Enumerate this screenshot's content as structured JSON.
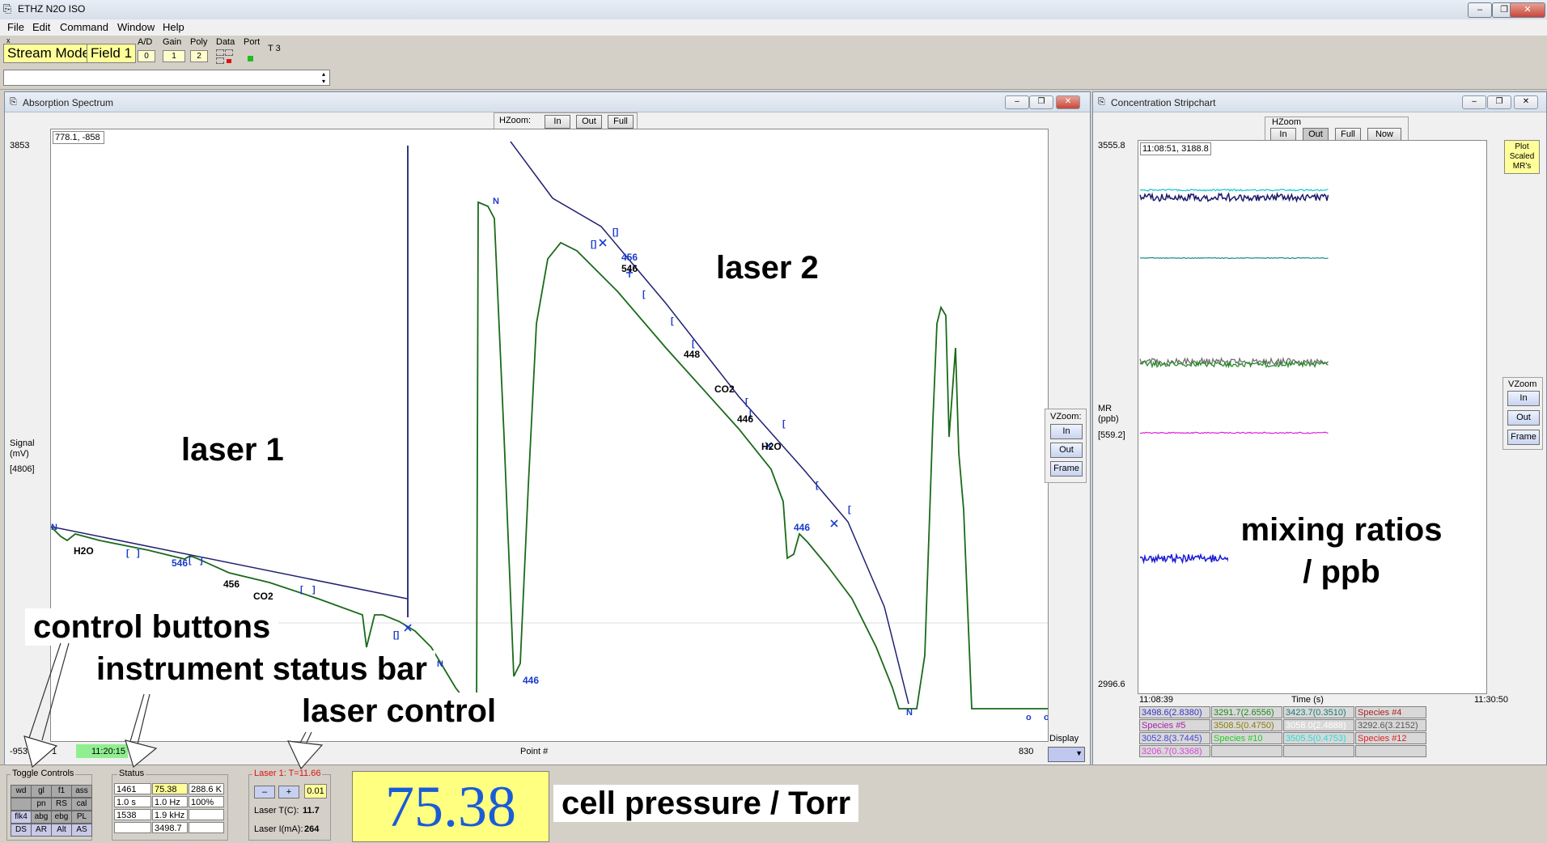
{
  "app": {
    "title": "ETHZ N2O ISO"
  },
  "menu": [
    "File",
    "Edit",
    "Command",
    "Window",
    "Help"
  ],
  "toolbar": {
    "stream_mode": "Stream Mode",
    "field": "Field 1",
    "ad_label": "A/D",
    "ad_value": "0",
    "gain_label": "Gain",
    "gain_value": "1",
    "poly_label": "Poly",
    "poly_value": "2",
    "data_label": "Data",
    "port_label": "Port",
    "t_label": "T 3",
    "x_label": "x"
  },
  "spectrum": {
    "title": "Absorption Spectrum",
    "hzoom_label": "HZoom:",
    "hzoom_buttons": [
      "In",
      "Out",
      "Full"
    ],
    "cursor_readout": "778.1, -858",
    "y_top": "3853",
    "y_bottom": "-953",
    "y_label": "Signal",
    "y_unit": "(mV)",
    "y_mid": "[4806]",
    "x_left": "1",
    "x_time": "11:20:15",
    "x_label": "Point #",
    "x_right": "830",
    "vzoom_label": "VZoom:",
    "vzoom_buttons": [
      "In",
      "Out",
      "Frame"
    ],
    "display_label": "Display",
    "peak_labels": {
      "h2o_1": "H2O",
      "p546_1": "546",
      "p456_1": "456",
      "co2_1": "CO2",
      "p456_2": "456",
      "p546_2": "546",
      "p448": "448",
      "co2_2": "CO2",
      "p446_1": "446",
      "h2o_2": "H2O",
      "p446_2": "446",
      "p446_3": "446"
    },
    "annotations": {
      "laser1": "laser 1",
      "laser2": "laser 2"
    }
  },
  "stripchart": {
    "title": "Concentration Stripchart",
    "hzoom_label": "HZoom",
    "hzoom_buttons": [
      "In",
      "Out",
      "Full",
      "Now"
    ],
    "cursor_readout": "11:08:51, 3188.8",
    "y_top": "3555.8",
    "y_bottom": "2996.6",
    "y_label": "MR",
    "y_unit": "(ppb)",
    "y_mid": "[559.2]",
    "x_left": "11:08:39",
    "x_label": "Time (s)",
    "x_right": "11:30:50",
    "plot_scaled": "Plot Scaled MR's",
    "vzoom_label": "VZoom",
    "vzoom_buttons": [
      "In",
      "Out",
      "Frame"
    ],
    "species": [
      [
        "3498.6(2.8380)",
        "3291.7(2.6556)",
        "3423.7(0.3510)",
        "Species #4"
      ],
      [
        "Species #5",
        "3508.5(0.4750)",
        "3058.0(2.4888)",
        "3292.6(3.2152)"
      ],
      [
        "3052.8(3.7445)",
        "Species #10",
        "3505.5(0.4753)",
        "Species #12"
      ],
      [
        "3206.7(0.3368)",
        "",
        "",
        ""
      ]
    ],
    "species_colors": [
      [
        "#3333cc",
        "#1a8a1a",
        "#1a7a7a",
        "#aa2222"
      ],
      [
        "#aa22aa",
        "#8a7a00",
        "#ffffff",
        "#555555"
      ],
      [
        "#4444dd",
        "#22cc22",
        "#22dddd",
        "#dd2222"
      ],
      [
        "#dd44dd",
        "#000000",
        "#000000",
        "#000000"
      ]
    ],
    "annotation": "mixing ratios / ppb"
  },
  "status": {
    "toggle_title": "Toggle Controls",
    "toggles": [
      [
        "wd",
        "gl",
        "f1",
        "ass"
      ],
      [
        "",
        "pn",
        "RS",
        "cal"
      ],
      [
        "flk4",
        "abg",
        "ebg",
        "PL"
      ],
      [
        "DS",
        "AR",
        "Alt",
        "AS"
      ]
    ],
    "status_title": "Status",
    "status_cells": [
      [
        "1461",
        "75.38",
        "288.6 K"
      ],
      [
        "1.0 s",
        "1.0 Hz",
        "100%"
      ],
      [
        "1538",
        "1.9 kHz",
        ""
      ],
      [
        "",
        "3498.7",
        ""
      ]
    ],
    "laser_title": "Laser 1: T=11.66",
    "laser_minus": "–",
    "laser_plus": "+",
    "laser_step": "0.01",
    "laser_t_label": "Laser T(C):",
    "laser_t_value": "11.7",
    "laser_i_label": "Laser I(mA):",
    "laser_i_value": "264",
    "pressure": "75.38"
  },
  "annotations": {
    "control_buttons": "control buttons",
    "instrument_status_bar": "instrument status bar",
    "laser_control": "laser control",
    "cell_pressure": "cell pressure / Torr"
  }
}
